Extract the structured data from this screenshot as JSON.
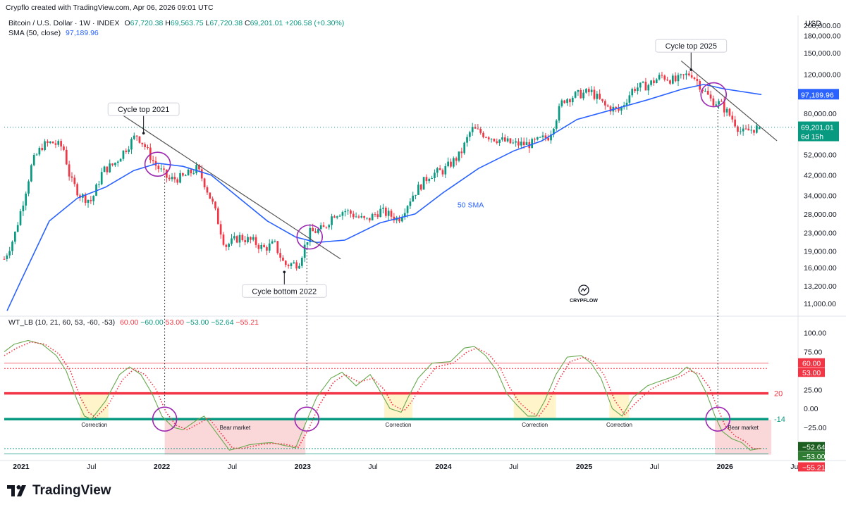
{
  "header": {
    "created": "Crypflo created with TradingView.com, Apr 06, 2026 09:01 UTC"
  },
  "symbol": {
    "name": "Bitcoin / U.S. Dollar · 1W · INDEX",
    "o_label": "O",
    "o": "67,720.38",
    "h_label": "H",
    "h": "69,563.75",
    "l_label": "L",
    "l": "67,720.38",
    "c_label": "C",
    "c": "69,201.01",
    "change": "+206.58 (+0.30%)"
  },
  "sma": {
    "label": "SMA (50, close)",
    "value": "97,189.96"
  },
  "indicator": {
    "label": "WT_LB (10, 21, 60, 53, -60, -53)",
    "v1": "60.00",
    "v2": "−60.00",
    "v3": "53.00",
    "v4": "−53.00",
    "v5": "−52.64",
    "v6": "−55.21"
  },
  "currency": "USD",
  "brand": "TradingView",
  "watermark": "CRYPFLOW",
  "colors": {
    "up": "#089981",
    "down": "#f23645",
    "sma": "#2962ff",
    "wave": "#4caf50",
    "signal": "#f23645",
    "overbought": "#e53935",
    "oversold": "#00897b"
  },
  "chart_data": [
    {
      "type": "candlestick",
      "title": "Bitcoin / U.S. Dollar · 1W · INDEX",
      "scale": "log",
      "ylim": [
        10000,
        200000
      ],
      "price_ticks": [
        "200,000.00",
        "180,000.00",
        "150,000.00",
        "120,000.00",
        "80,000.00",
        "52,000.00",
        "42,000.00",
        "34,000.00",
        "28,000.00",
        "23,000.00",
        "19,000.00",
        "16,000.00",
        "13,200.00",
        "11,000.00"
      ],
      "time_ticks": [
        {
          "label": "2021",
          "t": 2021.0
        },
        {
          "label": "Jul",
          "t": 2021.5
        },
        {
          "label": "2022",
          "t": 2022.0
        },
        {
          "label": "Jul",
          "t": 2022.5
        },
        {
          "label": "2023",
          "t": 2023.0
        },
        {
          "label": "Jul",
          "t": 2023.5
        },
        {
          "label": "2024",
          "t": 2024.0
        },
        {
          "label": "Jul",
          "t": 2024.5
        },
        {
          "label": "2025",
          "t": 2025.0
        },
        {
          "label": "Jul",
          "t": 2025.5
        },
        {
          "label": "2026",
          "t": 2026.0
        },
        {
          "label": "Jul",
          "t": 2026.5
        }
      ],
      "xlim": [
        2020.88,
        2026.5
      ],
      "price_anchors": [
        [
          2020.88,
          17500
        ],
        [
          2020.95,
          22000
        ],
        [
          2021.02,
          33000
        ],
        [
          2021.08,
          48000
        ],
        [
          2021.15,
          57000
        ],
        [
          2021.22,
          59000
        ],
        [
          2021.3,
          56000
        ],
        [
          2021.35,
          40000
        ],
        [
          2021.42,
          34000
        ],
        [
          2021.5,
          32000
        ],
        [
          2021.58,
          44000
        ],
        [
          2021.66,
          47000
        ],
        [
          2021.74,
          55000
        ],
        [
          2021.82,
          64000
        ],
        [
          2021.87,
          58000
        ],
        [
          2021.95,
          47000
        ],
        [
          2022.05,
          40000
        ],
        [
          2022.15,
          41000
        ],
        [
          2022.25,
          45000
        ],
        [
          2022.3,
          39000
        ],
        [
          2022.37,
          30000
        ],
        [
          2022.45,
          20000
        ],
        [
          2022.55,
          22000
        ],
        [
          2022.65,
          21000
        ],
        [
          2022.72,
          19500
        ],
        [
          2022.8,
          20500
        ],
        [
          2022.87,
          16500
        ],
        [
          2022.97,
          16700
        ],
        [
          2023.05,
          23000
        ],
        [
          2023.15,
          24000
        ],
        [
          2023.22,
          28000
        ],
        [
          2023.3,
          29000
        ],
        [
          2023.45,
          26000
        ],
        [
          2023.55,
          29000
        ],
        [
          2023.68,
          26500
        ],
        [
          2023.78,
          34000
        ],
        [
          2023.9,
          42000
        ],
        [
          2024.0,
          44000
        ],
        [
          2024.12,
          52000
        ],
        [
          2024.2,
          68000
        ],
        [
          2024.35,
          62000
        ],
        [
          2024.5,
          58000
        ],
        [
          2024.62,
          58000
        ],
        [
          2024.75,
          63000
        ],
        [
          2024.85,
          92000
        ],
        [
          2024.95,
          97000
        ],
        [
          2025.05,
          100000
        ],
        [
          2025.15,
          86000
        ],
        [
          2025.25,
          82000
        ],
        [
          2025.35,
          104000
        ],
        [
          2025.45,
          107000
        ],
        [
          2025.55,
          118000
        ],
        [
          2025.65,
          112000
        ],
        [
          2025.76,
          122000
        ],
        [
          2025.82,
          108000
        ],
        [
          2025.9,
          92000
        ],
        [
          2025.97,
          88000
        ],
        [
          2026.05,
          76000
        ],
        [
          2026.12,
          65000
        ],
        [
          2026.2,
          68000
        ],
        [
          2026.26,
          69201
        ]
      ],
      "sma50": [
        [
          2020.9,
          10200
        ],
        [
          2021.0,
          14000
        ],
        [
          2021.2,
          26000
        ],
        [
          2021.4,
          33000
        ],
        [
          2021.6,
          37000
        ],
        [
          2021.8,
          44000
        ],
        [
          2021.97,
          47500
        ],
        [
          2022.15,
          46000
        ],
        [
          2022.35,
          42000
        ],
        [
          2022.55,
          33000
        ],
        [
          2022.75,
          26000
        ],
        [
          2022.95,
          22000
        ],
        [
          2023.1,
          20800
        ],
        [
          2023.3,
          21300
        ],
        [
          2023.55,
          25500
        ],
        [
          2023.8,
          28000
        ],
        [
          2024.0,
          35000
        ],
        [
          2024.25,
          45000
        ],
        [
          2024.5,
          54000
        ],
        [
          2024.7,
          60000
        ],
        [
          2024.95,
          75000
        ],
        [
          2025.2,
          83000
        ],
        [
          2025.45,
          92000
        ],
        [
          2025.7,
          103000
        ],
        [
          2025.85,
          108000
        ],
        [
          2026.0,
          103000
        ],
        [
          2026.26,
          97189.96
        ]
      ],
      "annotations": [
        {
          "label": "Cycle top 2021",
          "t": 2021.87,
          "price": 64000
        },
        {
          "label": "Cycle bottom 2022",
          "t": 2022.87,
          "price": 15500
        },
        {
          "label": "Cycle top 2025",
          "t": 2025.76,
          "price": 124000
        },
        {
          "label": "50 SMA",
          "t": 2024.1,
          "price": 30000
        }
      ],
      "last_price": {
        "value": "69,201.01",
        "countdown": "6d 15h"
      },
      "sma_last": "97,189.96"
    },
    {
      "type": "line",
      "title": "WT_LB (10, 21, 60, 53, -60, -53)",
      "ylim": [
        -65,
        110
      ],
      "y_ticks": [
        "100.00",
        "75.00",
        "25.00",
        "0.00",
        "−25.00"
      ],
      "levels": [
        {
          "value": 60,
          "label": "60.00",
          "color": "#f23645"
        },
        {
          "value": 53,
          "label": "53.00",
          "color": "#f23645"
        },
        {
          "value": 20,
          "label": "20",
          "color": "#f23645"
        },
        {
          "value": -14,
          "label": "-14",
          "color": "#089981"
        },
        {
          "value": -53,
          "label": "−53.00",
          "color": "#089981"
        },
        {
          "value": -60,
          "label": "−60.00",
          "color": "#089981"
        }
      ],
      "series": [
        {
          "name": "wave",
          "values": [
            [
              2020.88,
              75
            ],
            [
              2020.95,
              85
            ],
            [
              2021.05,
              90
            ],
            [
              2021.15,
              85
            ],
            [
              2021.25,
              70
            ],
            [
              2021.32,
              50
            ],
            [
              2021.4,
              10
            ],
            [
              2021.45,
              -10
            ],
            [
              2021.5,
              -14
            ],
            [
              2021.6,
              10
            ],
            [
              2021.7,
              45
            ],
            [
              2021.77,
              55
            ],
            [
              2021.85,
              45
            ],
            [
              2021.93,
              20
            ],
            [
              2022.0,
              -10
            ],
            [
              2022.08,
              -25
            ],
            [
              2022.15,
              -28
            ],
            [
              2022.25,
              -15
            ],
            [
              2022.3,
              -10
            ],
            [
              2022.38,
              -30
            ],
            [
              2022.48,
              -55
            ],
            [
              2022.55,
              -52
            ],
            [
              2022.62,
              -48
            ],
            [
              2022.7,
              -46
            ],
            [
              2022.78,
              -45
            ],
            [
              2022.85,
              -48
            ],
            [
              2022.95,
              -52
            ],
            [
              2023.02,
              -20
            ],
            [
              2023.1,
              15
            ],
            [
              2023.2,
              40
            ],
            [
              2023.28,
              48
            ],
            [
              2023.38,
              30
            ],
            [
              2023.48,
              45
            ],
            [
              2023.56,
              20
            ],
            [
              2023.62,
              0
            ],
            [
              2023.7,
              -5
            ],
            [
              2023.75,
              15
            ],
            [
              2023.82,
              40
            ],
            [
              2023.92,
              60
            ],
            [
              2024.05,
              62
            ],
            [
              2024.15,
              80
            ],
            [
              2024.22,
              82
            ],
            [
              2024.3,
              70
            ],
            [
              2024.38,
              50
            ],
            [
              2024.45,
              20
            ],
            [
              2024.52,
              5
            ],
            [
              2024.6,
              -10
            ],
            [
              2024.66,
              -10
            ],
            [
              2024.72,
              10
            ],
            [
              2024.8,
              45
            ],
            [
              2024.88,
              68
            ],
            [
              2024.98,
              70
            ],
            [
              2025.05,
              60
            ],
            [
              2025.12,
              40
            ],
            [
              2025.2,
              0
            ],
            [
              2025.27,
              -10
            ],
            [
              2025.35,
              15
            ],
            [
              2025.45,
              30
            ],
            [
              2025.52,
              35
            ],
            [
              2025.6,
              40
            ],
            [
              2025.67,
              45
            ],
            [
              2025.73,
              55
            ],
            [
              2025.8,
              45
            ],
            [
              2025.87,
              20
            ],
            [
              2025.93,
              -10
            ],
            [
              2025.98,
              -30
            ],
            [
              2026.05,
              -40
            ],
            [
              2026.12,
              -45
            ],
            [
              2026.18,
              -55
            ],
            [
              2026.26,
              -52.64
            ]
          ]
        },
        {
          "name": "signal",
          "values": [
            [
              2020.88,
              70
            ],
            [
              2020.97,
              80
            ],
            [
              2021.07,
              88
            ],
            [
              2021.17,
              85
            ],
            [
              2021.27,
              72
            ],
            [
              2021.35,
              50
            ],
            [
              2021.42,
              15
            ],
            [
              2021.48,
              -5
            ],
            [
              2021.53,
              -12
            ],
            [
              2021.62,
              5
            ],
            [
              2021.72,
              38
            ],
            [
              2021.8,
              52
            ],
            [
              2021.88,
              45
            ],
            [
              2021.96,
              25
            ],
            [
              2022.03,
              -5
            ],
            [
              2022.1,
              -22
            ],
            [
              2022.18,
              -28
            ],
            [
              2022.28,
              -18
            ],
            [
              2022.33,
              -12
            ],
            [
              2022.4,
              -28
            ],
            [
              2022.5,
              -52
            ],
            [
              2022.57,
              -53
            ],
            [
              2022.64,
              -50
            ],
            [
              2022.72,
              -47
            ],
            [
              2022.8,
              -46
            ],
            [
              2022.87,
              -47
            ],
            [
              2022.97,
              -51
            ],
            [
              2023.04,
              -28
            ],
            [
              2023.12,
              5
            ],
            [
              2023.22,
              35
            ],
            [
              2023.3,
              45
            ],
            [
              2023.4,
              35
            ],
            [
              2023.5,
              40
            ],
            [
              2023.58,
              25
            ],
            [
              2023.64,
              5
            ],
            [
              2023.72,
              -3
            ],
            [
              2023.77,
              8
            ],
            [
              2023.85,
              32
            ],
            [
              2023.95,
              55
            ],
            [
              2024.07,
              60
            ],
            [
              2024.17,
              75
            ],
            [
              2024.24,
              80
            ],
            [
              2024.32,
              72
            ],
            [
              2024.4,
              55
            ],
            [
              2024.47,
              28
            ],
            [
              2024.54,
              8
            ],
            [
              2024.62,
              -5
            ],
            [
              2024.68,
              -10
            ],
            [
              2024.74,
              5
            ],
            [
              2024.82,
              38
            ],
            [
              2024.9,
              62
            ],
            [
              2025.0,
              68
            ],
            [
              2025.07,
              62
            ],
            [
              2025.14,
              45
            ],
            [
              2025.22,
              10
            ],
            [
              2025.29,
              -8
            ],
            [
              2025.37,
              8
            ],
            [
              2025.47,
              25
            ],
            [
              2025.54,
              32
            ],
            [
              2025.62,
              38
            ],
            [
              2025.69,
              43
            ],
            [
              2025.75,
              50
            ],
            [
              2025.82,
              46
            ],
            [
              2025.89,
              28
            ],
            [
              2025.95,
              0
            ],
            [
              2026.0,
              -22
            ],
            [
              2026.07,
              -36
            ],
            [
              2026.14,
              -43
            ],
            [
              2026.2,
              -53
            ],
            [
              2026.26,
              -53
            ]
          ]
        }
      ],
      "zones": [
        {
          "label": "Correction",
          "t0": 2021.42,
          "t1": 2021.62,
          "type": "correction"
        },
        {
          "label": "Bear market",
          "t0": 2022.02,
          "t1": 2023.02,
          "type": "bear"
        },
        {
          "label": "Correction",
          "t0": 2023.58,
          "t1": 2023.78,
          "type": "correction"
        },
        {
          "label": "Correction",
          "t0": 2024.5,
          "t1": 2024.8,
          "type": "correction"
        },
        {
          "label": "Correction",
          "t0": 2025.18,
          "t1": 2025.32,
          "type": "correction"
        },
        {
          "label": "Bear market",
          "t0": 2025.93,
          "t1": 2026.33,
          "type": "bear"
        }
      ],
      "last_values": [
        "−52.64",
        "−53.00",
        "−55.21"
      ]
    }
  ]
}
